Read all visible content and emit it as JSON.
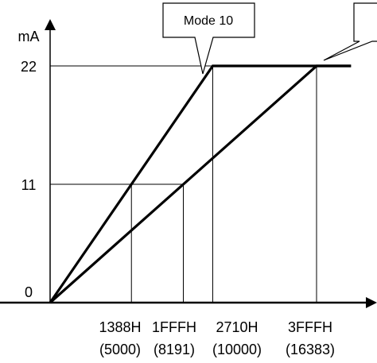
{
  "chart_data": {
    "type": "line",
    "ylabel": "mA",
    "y_ticks": [
      {
        "label": "0",
        "value": 0
      },
      {
        "label": "11",
        "value": 11
      },
      {
        "label": "22",
        "value": 22
      }
    ],
    "x_ticks": [
      {
        "label": "1388H",
        "sublabel": "(5000)",
        "value": 5000
      },
      {
        "label": "1FFFH",
        "sublabel": "(8191)",
        "value": 8191
      },
      {
        "label": "2710H",
        "sublabel": "(10000)",
        "value": 10000
      },
      {
        "label": "3FFFH",
        "sublabel": "(16383)",
        "value": 16383
      }
    ],
    "xlim": [
      0,
      18500
    ],
    "ylim": [
      0,
      24
    ],
    "series": [
      {
        "name": "Mode 10",
        "x": [
          0,
          10000,
          18500
        ],
        "y": [
          0,
          22,
          22
        ]
      },
      {
        "name": "",
        "x": [
          0,
          16383,
          18500
        ],
        "y": [
          0,
          22,
          22
        ]
      }
    ],
    "reference_lines": [
      {
        "x": [
          0,
          16383
        ],
        "y": [
          22,
          22
        ]
      },
      {
        "x": [
          0,
          8191
        ],
        "y": [
          11,
          11
        ]
      },
      {
        "x": [
          5000,
          5000
        ],
        "y": [
          0,
          11
        ]
      },
      {
        "x": [
          8191,
          8191
        ],
        "y": [
          0,
          11
        ]
      },
      {
        "x": [
          10000,
          10000
        ],
        "y": [
          0,
          22
        ]
      },
      {
        "x": [
          16383,
          16383
        ],
        "y": [
          0,
          22
        ]
      }
    ],
    "annotations": [
      {
        "text": "Mode 10",
        "target_series": 0
      },
      {
        "text": "",
        "target_series": 1
      }
    ],
    "grid": false,
    "legend": "none",
    "colors": {
      "line": "#000000",
      "background": "#ffffff"
    }
  }
}
